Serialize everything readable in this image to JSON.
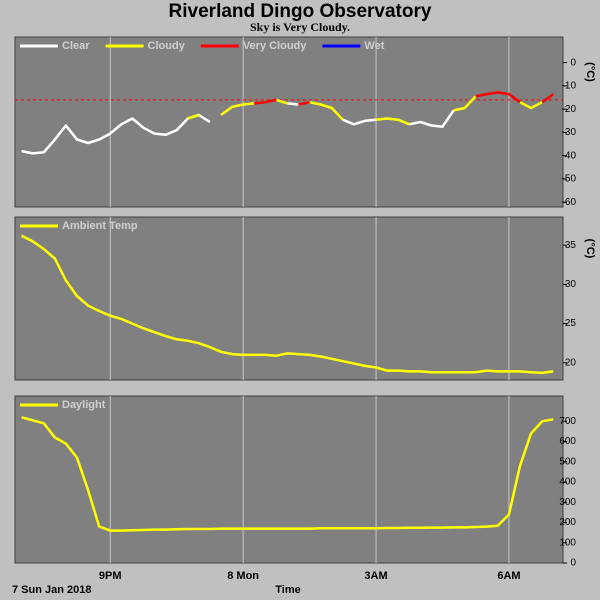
{
  "chart_data": [
    {
      "type": "line",
      "title": "Riverland Dingo Observatory",
      "subtitle": "Sky is Very Cloudy.",
      "y_label": "(°C)",
      "xlim": [
        18.85,
        31.22
      ],
      "ylim": [
        -62,
        11
      ],
      "yticks": [
        0,
        -10,
        -20,
        -30,
        -40,
        -50,
        -60
      ],
      "reference_line": {
        "value": -16,
        "color": "#ff0000"
      },
      "x": [
        19.0,
        19.25,
        19.5,
        19.75,
        20.0,
        20.25,
        20.5,
        20.75,
        21.0,
        21.25,
        21.5,
        21.75,
        22.0,
        22.25,
        22.5,
        22.75,
        23.0,
        23.25,
        23.5,
        23.75,
        24.0,
        24.25,
        24.5,
        24.75,
        25.0,
        25.25,
        25.5,
        25.75,
        26.0,
        26.25,
        26.5,
        26.75,
        27.0,
        27.25,
        27.5,
        27.75,
        28.0,
        28.25,
        28.5,
        28.75,
        29.0,
        29.25,
        29.5,
        29.75,
        30.0,
        30.25,
        30.5,
        30.75,
        31.0
      ],
      "series": [
        {
          "name": "Clear",
          "color": "#ffffff",
          "values": [
            -38,
            -39,
            -38.5,
            -33,
            -27,
            -33,
            -34.5,
            -33,
            -30.5,
            -26.5,
            -24,
            -28,
            -30.5,
            -31,
            -29,
            -24,
            -22.5,
            -25.5,
            null,
            null,
            null,
            null,
            null,
            null,
            -17.5,
            -18,
            null,
            null,
            null,
            -24.5,
            -26.5,
            -25,
            -24.5,
            null,
            null,
            -26.5,
            -25.5,
            -27,
            -27.5,
            -20.5,
            null,
            null,
            null,
            null,
            null,
            null,
            null,
            null,
            null
          ]
        },
        {
          "name": "Cloudy",
          "color": "#ffff00",
          "values": [
            null,
            null,
            null,
            null,
            null,
            null,
            null,
            null,
            null,
            null,
            null,
            null,
            null,
            null,
            null,
            -24,
            -22.5,
            null,
            -22.5,
            -19,
            -18,
            -17.5,
            null,
            -16,
            -17.5,
            null,
            -17,
            -18,
            -19.5,
            -24.5,
            null,
            null,
            -24.5,
            -24,
            -24.5,
            -26.5,
            null,
            null,
            null,
            -20.5,
            -19.5,
            -14.5,
            null,
            null,
            null,
            -17,
            -19.5,
            -17,
            null
          ]
        },
        {
          "name": "Very Cloudy",
          "color": "#ff0000",
          "values": [
            null,
            null,
            null,
            null,
            null,
            null,
            null,
            null,
            null,
            null,
            null,
            null,
            null,
            null,
            null,
            null,
            null,
            null,
            null,
            null,
            null,
            -17.5,
            -17,
            -16,
            null,
            -18,
            -17,
            null,
            null,
            null,
            null,
            null,
            null,
            null,
            null,
            null,
            null,
            null,
            null,
            null,
            null,
            -14.5,
            -13.5,
            -12.8,
            -13.5,
            -17,
            null,
            -17,
            -13.5
          ]
        },
        {
          "name": "Wet",
          "color": "#0000ff",
          "values": [
            null,
            null,
            null,
            null,
            null,
            null,
            null,
            null,
            null,
            null,
            null,
            null,
            null,
            null,
            null,
            null,
            null,
            null,
            null,
            null,
            null,
            null,
            null,
            null,
            null,
            null,
            null,
            null,
            null,
            null,
            null,
            null,
            null,
            null,
            null,
            null,
            null,
            null,
            null,
            null,
            null,
            null,
            null,
            null,
            null,
            null,
            null,
            null,
            null
          ]
        }
      ]
    },
    {
      "type": "line",
      "y_label": "(°C)",
      "xlim": [
        18.85,
        31.22
      ],
      "ylim": [
        17.8,
        38.6
      ],
      "yticks": [
        35,
        30,
        25,
        20
      ],
      "x": [
        19.0,
        19.25,
        19.5,
        19.75,
        20.0,
        20.25,
        20.5,
        20.75,
        21.0,
        21.25,
        21.5,
        21.75,
        22.0,
        22.25,
        22.5,
        22.75,
        23.0,
        23.25,
        23.5,
        23.75,
        24.0,
        24.25,
        24.5,
        24.75,
        25.0,
        25.25,
        25.5,
        25.75,
        26.0,
        26.25,
        26.5,
        26.75,
        27.0,
        27.25,
        27.5,
        27.75,
        28.0,
        28.25,
        28.5,
        28.75,
        29.0,
        29.25,
        29.5,
        29.75,
        30.0,
        30.25,
        30.5,
        30.75,
        31.0
      ],
      "series": [
        {
          "name": "Ambient Temp",
          "color": "#ffff00",
          "values": [
            36.2,
            35.5,
            34.5,
            33.3,
            30.5,
            28.5,
            27.3,
            26.6,
            26.0,
            25.6,
            25.0,
            24.4,
            23.9,
            23.4,
            23.0,
            22.8,
            22.5,
            22.0,
            21.4,
            21.1,
            21.0,
            21.0,
            21.0,
            20.9,
            21.2,
            21.1,
            21.0,
            20.8,
            20.5,
            20.2,
            19.9,
            19.6,
            19.4,
            19.0,
            19.0,
            18.9,
            18.9,
            18.8,
            18.8,
            18.8,
            18.8,
            18.8,
            19.0,
            18.9,
            18.9,
            18.9,
            18.8,
            18.7,
            18.9
          ]
        }
      ]
    },
    {
      "type": "line",
      "x_label": "Time",
      "date_label": "7 Sun Jan 2018",
      "xlim": [
        18.85,
        31.22
      ],
      "ylim": [
        0,
        825
      ],
      "yticks": [
        0,
        100,
        200,
        300,
        400,
        500,
        600,
        700
      ],
      "xticks": [
        {
          "value": 21,
          "label": "9PM"
        },
        {
          "value": 24,
          "label": "8 Mon"
        },
        {
          "value": 27,
          "label": "3AM"
        },
        {
          "value": 30,
          "label": "6AM"
        }
      ],
      "x": [
        19.0,
        19.25,
        19.5,
        19.75,
        20.0,
        20.25,
        20.5,
        20.75,
        21.0,
        21.25,
        21.5,
        21.75,
        22.0,
        22.25,
        22.5,
        22.75,
        23.0,
        23.25,
        23.5,
        23.75,
        24.0,
        24.25,
        24.5,
        24.75,
        25.0,
        25.25,
        25.5,
        25.75,
        26.0,
        26.25,
        26.5,
        26.75,
        27.0,
        27.25,
        27.5,
        27.75,
        28.0,
        28.25,
        28.5,
        28.75,
        29.0,
        29.25,
        29.5,
        29.75,
        30.0,
        30.25,
        30.5,
        30.75,
        31.0
      ],
      "series": [
        {
          "name": "Daylight",
          "color": "#ffff00",
          "values": [
            720,
            705,
            690,
            620,
            590,
            520,
            360,
            180,
            160,
            160,
            162,
            163,
            165,
            165,
            167,
            168,
            168,
            168,
            170,
            170,
            170,
            170,
            170,
            170,
            170,
            170,
            170,
            172,
            172,
            172,
            172,
            172,
            172,
            173,
            173,
            174,
            174,
            175,
            175,
            176,
            176,
            178,
            180,
            185,
            240,
            480,
            640,
            700,
            710
          ]
        }
      ]
    }
  ]
}
